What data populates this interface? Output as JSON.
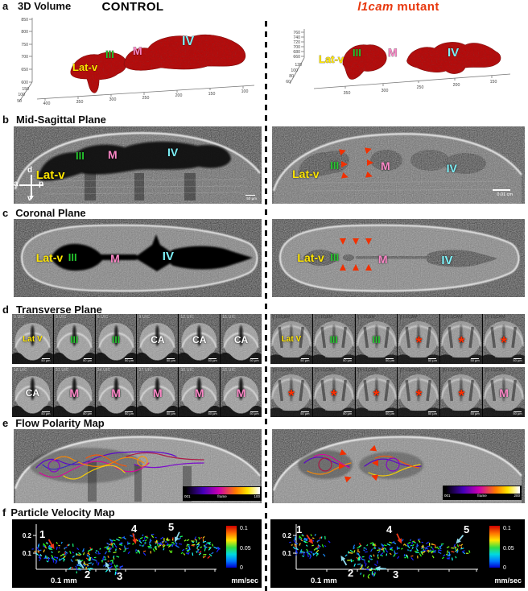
{
  "figure": {
    "control_heading": "CONTROL",
    "mutant_heading_gene": "l1cam",
    "mutant_heading_rest": " mutant"
  },
  "colors": {
    "label_yellow": "#ffe600",
    "label_green": "#25c52e",
    "label_pink": "#f986c5",
    "label_cyan": "#7df0f7",
    "label_white": "#ffffff",
    "arrow_red": "#f23000",
    "heading_red": "#e8380e",
    "volume_red": "#c01010"
  },
  "panels": {
    "a": {
      "tag": "a",
      "title": "3D Volume",
      "left": {
        "y_ticks": [
          "850",
          "800",
          "750",
          "700",
          "650",
          "600"
        ],
        "y2_ticks": [
          "150",
          "100",
          "50"
        ],
        "x_ticks": [
          "400",
          "350",
          "300",
          "250",
          "200",
          "150",
          "100"
        ],
        "labels": {
          "latv": "Lat-v",
          "iii": "III",
          "m": "M",
          "iv": "IV"
        }
      },
      "right": {
        "y_ticks": [
          "760",
          "740",
          "720",
          "700",
          "680",
          "660"
        ],
        "y2_ticks": [
          "120",
          "100",
          "80",
          "60"
        ],
        "x_ticks": [
          "350",
          "300",
          "250",
          "200",
          "150"
        ],
        "labels": {
          "latv": "Lat-v",
          "iii": "III",
          "m": "M",
          "iv": "IV"
        }
      }
    },
    "b": {
      "tag": "b",
      "title": "Mid-Sagittal Plane",
      "left": {
        "labels": {
          "latv": "Lat-v",
          "iii": "III",
          "m": "M",
          "iv": "IV"
        },
        "compass": {
          "d": "d",
          "a": "a",
          "p": "p",
          "v": "v"
        },
        "scalebar": "50 µm"
      },
      "right": {
        "labels": {
          "latv": "Lat-v",
          "iii": "III",
          "m": "M",
          "iv": "IV"
        },
        "scalebar": "0.01 cm"
      }
    },
    "c": {
      "tag": "c",
      "title": "Coronal Plane",
      "left": {
        "labels": {
          "latv": "Lat-v",
          "iii": "III",
          "m": "M",
          "iv": "IV"
        }
      },
      "right": {
        "labels": {
          "latv": "Lat-v",
          "iii": "III",
          "m": "M",
          "iv": "IV"
        }
      }
    },
    "d": {
      "tag": "d",
      "title": "Transverse Plane",
      "control_row1": [
        {
          "frame": "0 UIC",
          "label": "Lat V",
          "color": "yellow",
          "scalebar": "50 µm"
        },
        {
          "frame": "3 UIC",
          "label": "III",
          "color": "green",
          "scalebar": "50 µm"
        },
        {
          "frame": "6 UIC",
          "label": "III",
          "color": "green",
          "scalebar": "50 µm"
        },
        {
          "frame": "9 UIC",
          "label": "CA",
          "color": "white",
          "scalebar": "50 µm"
        },
        {
          "frame": "12 UIC",
          "label": "CA",
          "color": "white",
          "scalebar": "50 µm"
        },
        {
          "frame": "15 UIC",
          "label": "CA",
          "color": "white",
          "scalebar": "50 µm"
        }
      ],
      "control_row2": [
        {
          "frame": "18 UIC",
          "label": "CA",
          "color": "white",
          "scalebar": "50 µm"
        },
        {
          "frame": "21 UIC",
          "label": "M",
          "color": "pink",
          "scalebar": "50 µm"
        },
        {
          "frame": "24 UIC",
          "label": "M",
          "color": "pink",
          "scalebar": "50 µm"
        },
        {
          "frame": "27 UIC",
          "label": "M",
          "color": "pink",
          "scalebar": "50 µm"
        },
        {
          "frame": "30 UIC",
          "label": "M",
          "color": "pink",
          "scalebar": "50 µm"
        },
        {
          "frame": "33 UIC",
          "label": "M",
          "color": "pink",
          "scalebar": "50 µm"
        }
      ],
      "mutant_row1": [
        {
          "frame": "0 L1CAM",
          "label": "Lat V",
          "color": "yellow",
          "scalebar": "50 µm"
        },
        {
          "frame": "3 L1CAM",
          "label": "III",
          "color": "green",
          "scalebar": "50 µm"
        },
        {
          "frame": "6 L1CAM",
          "label": "III",
          "color": "green",
          "scalebar": "50 µm"
        },
        {
          "frame": "9 L1CAM",
          "label": "*",
          "color": "red",
          "scalebar": "50 µm"
        },
        {
          "frame": "12 L1CAM",
          "label": "*",
          "color": "red",
          "scalebar": "50 µm"
        },
        {
          "frame": "15 L1CAM",
          "label": "*",
          "color": "red",
          "scalebar": "50 µm"
        }
      ],
      "mutant_row2": [
        {
          "frame": "18 L1CAM",
          "label": "*",
          "color": "red",
          "scalebar": "50 µm"
        },
        {
          "frame": "21 L1CAM",
          "label": "*",
          "color": "red",
          "scalebar": "50 µm"
        },
        {
          "frame": "24 L1CAM",
          "label": "*",
          "color": "red",
          "scalebar": "50 µm"
        },
        {
          "frame": "27 L1CAM",
          "label": "*",
          "color": "red",
          "scalebar": "50 µm"
        },
        {
          "frame": "30 L1CAM",
          "label": "*",
          "color": "red",
          "scalebar": "50 µm"
        },
        {
          "frame": "33 L1CAM",
          "label": "M",
          "color": "pink",
          "scalebar": "50 µm"
        }
      ]
    },
    "e": {
      "tag": "e",
      "title": "Flow Polarity Map",
      "left": {
        "colorbar": {
          "min": "001",
          "label": "frame",
          "max": "100"
        }
      },
      "right": {
        "colorbar": {
          "min": "001",
          "label": "frame",
          "max": "200"
        }
      }
    },
    "f": {
      "tag": "f",
      "title": "Particle Velocity Map",
      "left": {
        "y_ticks": [
          "0.2",
          "0.1"
        ],
        "x_label": "0.1 mm",
        "markers": [
          {
            "n": "1",
            "arrow": "red"
          },
          {
            "n": "2",
            "arrow": "cyan"
          },
          {
            "n": "3",
            "arrow": "cyan"
          },
          {
            "n": "4",
            "arrow": "red"
          },
          {
            "n": "5",
            "arrow": "cyan"
          }
        ],
        "colorbar": {
          "t_max": "0.1",
          "t_mid": "0.05",
          "t_min": "0",
          "unit": "mm/sec"
        }
      },
      "right": {
        "y_ticks": [
          "0.2",
          "0.1"
        ],
        "x_label": "0.1 mm",
        "markers": [
          {
            "n": "1",
            "arrow": "red"
          },
          {
            "n": "2",
            "arrow": "cyan"
          },
          {
            "n": "3",
            "arrow": "cyan"
          },
          {
            "n": "4",
            "arrow": "red"
          },
          {
            "n": "5",
            "arrow": "cyan"
          }
        ],
        "colorbar": {
          "t_max": "0.1",
          "t_mid": "0.05",
          "t_min": "0",
          "unit": "mm/sec"
        }
      }
    }
  }
}
